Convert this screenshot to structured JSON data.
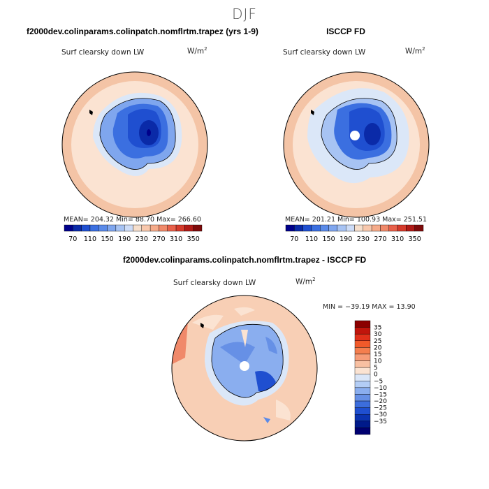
{
  "season": "DJF",
  "panels": {
    "model": {
      "title": "f2000dev.colinparams.colinpatch.nomflrtm.trapez (yrs 1-9)",
      "variable": "Surf clearsky down LW",
      "units": "W/m",
      "units_sup": "2",
      "stats": "MEAN= 204.32   Min=   88.70   Max= 266.60"
    },
    "obs": {
      "title": "ISCCP FD",
      "variable": "Surf clearsky down LW",
      "units": "W/m",
      "units_sup": "2",
      "stats": "MEAN= 201.21   Min=  100.93   Max= 251.51"
    },
    "diff": {
      "title": "f2000dev.colinparams.colinpatch.nomflrtm.trapez - ISCCP FD",
      "variable": "Surf clearsky down LW",
      "units": "W/m",
      "units_sup": "2",
      "minmax": "MIN = −39.19  MAX =   13.90"
    }
  },
  "colorbar_abs": {
    "labels": [
      "70",
      "110",
      "150",
      "190",
      "230",
      "270",
      "310",
      "350"
    ],
    "colors": [
      "#00008a",
      "#0a2aa8",
      "#1f4fd0",
      "#3b6fe0",
      "#5a8ae8",
      "#7fa6ee",
      "#a7c3f3",
      "#cddcf7",
      "#f6dfcd",
      "#f8c8ad",
      "#f5ab8a",
      "#f0896a",
      "#e8604a",
      "#d53a2b",
      "#b01a16",
      "#7d0a0a"
    ]
  },
  "colorbar_diff": {
    "labels": [
      "35",
      "30",
      "25",
      "20",
      "15",
      "10",
      "5",
      "0",
      "−5",
      "−10",
      "−15",
      "−20",
      "−25",
      "−30",
      "−35"
    ],
    "colors": [
      "#8b0000",
      "#c0150c",
      "#e0301a",
      "#f05a2a",
      "#f47e4e",
      "#f69c78",
      "#f8c0a2",
      "#fbe3d2",
      "#dae6f8",
      "#b3cdf5",
      "#8aaeef",
      "#6690e6",
      "#3c6ddc",
      "#1f4fd0",
      "#0b33b0",
      "#001a8a",
      "#000070"
    ]
  }
}
